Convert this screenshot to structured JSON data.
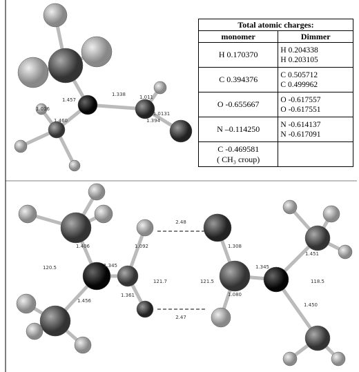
{
  "table": {
    "title": "Total atomic charges:",
    "headers": [
      "monomer",
      "Dimmer"
    ],
    "rows": [
      [
        "H 0.170370",
        [
          "H 0.204338",
          "H 0.203105"
        ]
      ],
      [
        "C 0.394376",
        [
          "C 0.505712",
          "C 0.499962"
        ]
      ],
      [
        "O -0.655667",
        [
          "O -0.617557",
          "O -0.617551"
        ]
      ],
      [
        "N –0.114250",
        [
          "N -0.614137",
          "N -0.617091"
        ]
      ],
      [
        [
          "C -0.469581",
          "( CH₃ croup)"
        ],
        []
      ]
    ]
  },
  "top_molecule": {
    "bond_labels": [
      "1.457",
      "1.338",
      "1.011",
      "1.0131",
      "1.394",
      "1.460",
      "1.016"
    ]
  },
  "bottom_molecule": {
    "bond_labels": [
      "2.48",
      "2.47",
      "1.406",
      "1.092",
      "1.345",
      "121.7",
      "1.361",
      "1.456",
      "120.5",
      "121.5",
      "1.308",
      "1.345",
      "1.080",
      "1.451",
      "118.5",
      "1.450"
    ]
  }
}
